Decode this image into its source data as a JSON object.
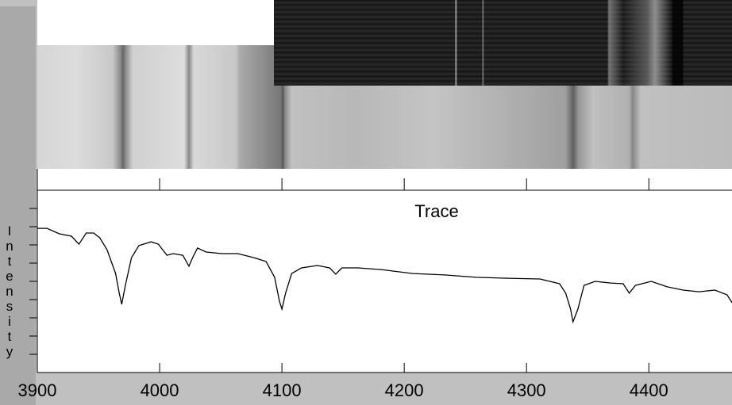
{
  "chart_data": {
    "type": "line",
    "title": "Trace",
    "ylabel": "Intensity",
    "x": [
      3900,
      3908,
      3918,
      3928,
      3934,
      3940,
      3946,
      3951,
      3957,
      3964,
      3967,
      3969,
      3972,
      3977,
      3983,
      3993,
      3999,
      4006,
      4011,
      4019,
      4024,
      4027,
      4031,
      4038,
      4051,
      4064,
      4077,
      4087,
      4094,
      4098,
      4100,
      4103,
      4108,
      4116,
      4129,
      4139,
      4144,
      4149,
      4162,
      4181,
      4207,
      4233,
      4259,
      4285,
      4311,
      4327,
      4332,
      4336,
      4338,
      4342,
      4347,
      4356,
      4369,
      4379,
      4384,
      4389,
      4402,
      4415,
      4428,
      4441,
      4454,
      4464,
      4468
    ],
    "series": [
      {
        "color": "#000000",
        "values": [
          79.1,
          79.1,
          76.1,
          74.8,
          70.4,
          76.5,
          76.5,
          73.9,
          67.4,
          54.3,
          43.5,
          37.4,
          47.8,
          63.0,
          69.6,
          71.7,
          70.4,
          64.3,
          65.2,
          64.3,
          58.3,
          63.0,
          68.3,
          66.1,
          65.2,
          65.2,
          63.0,
          60.9,
          52.2,
          39.1,
          34.8,
          43.5,
          54.3,
          57.4,
          58.7,
          57.4,
          53.9,
          57.4,
          57.4,
          56.5,
          54.3,
          53.5,
          52.2,
          51.7,
          51.3,
          48.7,
          43.5,
          34.8,
          27.8,
          34.8,
          47.8,
          50.0,
          49.1,
          48.7,
          43.5,
          47.8,
          50.0,
          47.0,
          45.2,
          44.3,
          45.2,
          42.6,
          38.3
        ]
      }
    ],
    "xlim": [
      3900,
      4468
    ],
    "xticks": [
      3900,
      4000,
      4100,
      4200,
      4300,
      4400
    ],
    "ylim": [
      0,
      100
    ],
    "yticks": [
      10,
      20,
      30,
      40,
      50,
      60,
      70,
      80,
      90
    ]
  }
}
